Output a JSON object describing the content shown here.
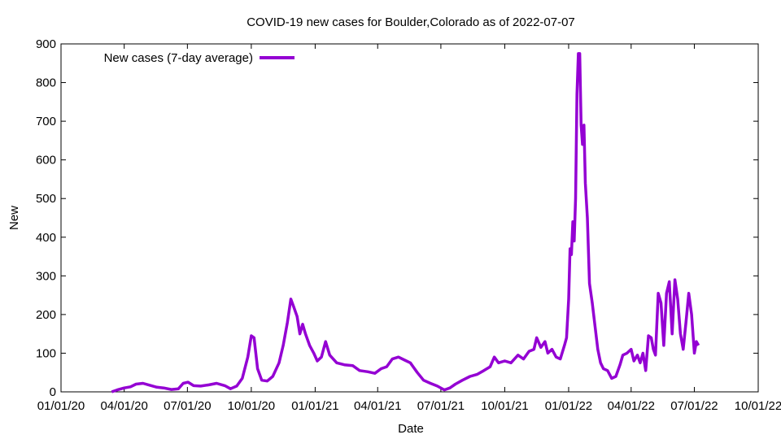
{
  "chart_data": {
    "type": "line",
    "title": "COVID-19 new cases for Boulder,Colorado as of 2022-07-07",
    "xlabel": "Date",
    "ylabel": "New",
    "xlim": [
      "2020-01-01",
      "2022-10-01"
    ],
    "ylim": [
      0,
      900
    ],
    "x_ticks": [
      "01/01/20",
      "04/01/20",
      "07/01/20",
      "10/01/20",
      "01/01/21",
      "04/01/21",
      "07/01/21",
      "10/01/21",
      "01/01/22",
      "04/01/22",
      "07/01/22",
      "10/01/22"
    ],
    "y_ticks": [
      "0",
      "100",
      "200",
      "300",
      "400",
      "500",
      "600",
      "700",
      "800",
      "900"
    ],
    "legend_position": "top-left",
    "grid": false,
    "series": [
      {
        "name": "New cases (7-day average)",
        "color": "#9400D3",
        "points": [
          [
            "2020-03-14",
            0
          ],
          [
            "2020-03-22",
            5
          ],
          [
            "2020-04-01",
            10
          ],
          [
            "2020-04-10",
            13
          ],
          [
            "2020-04-18",
            20
          ],
          [
            "2020-04-28",
            22
          ],
          [
            "2020-05-08",
            17
          ],
          [
            "2020-05-18",
            12
          ],
          [
            "2020-05-28",
            10
          ],
          [
            "2020-06-08",
            6
          ],
          [
            "2020-06-18",
            8
          ],
          [
            "2020-06-25",
            22
          ],
          [
            "2020-07-02",
            25
          ],
          [
            "2020-07-10",
            16
          ],
          [
            "2020-07-20",
            15
          ],
          [
            "2020-08-01",
            18
          ],
          [
            "2020-08-12",
            22
          ],
          [
            "2020-08-24",
            16
          ],
          [
            "2020-09-01",
            8
          ],
          [
            "2020-09-10",
            15
          ],
          [
            "2020-09-18",
            35
          ],
          [
            "2020-09-26",
            90
          ],
          [
            "2020-10-01",
            145
          ],
          [
            "2020-10-05",
            140
          ],
          [
            "2020-10-10",
            60
          ],
          [
            "2020-10-16",
            30
          ],
          [
            "2020-10-24",
            28
          ],
          [
            "2020-11-01",
            40
          ],
          [
            "2020-11-10",
            75
          ],
          [
            "2020-11-16",
            120
          ],
          [
            "2020-11-22",
            180
          ],
          [
            "2020-11-27",
            240
          ],
          [
            "2020-12-01",
            220
          ],
          [
            "2020-12-06",
            195
          ],
          [
            "2020-12-10",
            150
          ],
          [
            "2020-12-14",
            175
          ],
          [
            "2020-12-18",
            150
          ],
          [
            "2020-12-24",
            120
          ],
          [
            "2020-12-30",
            100
          ],
          [
            "2021-01-04",
            80
          ],
          [
            "2021-01-10",
            90
          ],
          [
            "2021-01-16",
            130
          ],
          [
            "2021-01-22",
            95
          ],
          [
            "2021-02-01",
            75
          ],
          [
            "2021-02-12",
            70
          ],
          [
            "2021-02-24",
            68
          ],
          [
            "2021-03-06",
            55
          ],
          [
            "2021-03-18",
            52
          ],
          [
            "2021-03-28",
            48
          ],
          [
            "2021-04-06",
            60
          ],
          [
            "2021-04-14",
            65
          ],
          [
            "2021-04-22",
            85
          ],
          [
            "2021-05-01",
            90
          ],
          [
            "2021-05-10",
            82
          ],
          [
            "2021-05-18",
            75
          ],
          [
            "2021-05-28",
            50
          ],
          [
            "2021-06-06",
            30
          ],
          [
            "2021-06-16",
            22
          ],
          [
            "2021-06-26",
            15
          ],
          [
            "2021-07-06",
            5
          ],
          [
            "2021-07-14",
            10
          ],
          [
            "2021-07-22",
            20
          ],
          [
            "2021-08-01",
            30
          ],
          [
            "2021-08-12",
            40
          ],
          [
            "2021-08-22",
            45
          ],
          [
            "2021-09-01",
            55
          ],
          [
            "2021-09-10",
            65
          ],
          [
            "2021-09-16",
            90
          ],
          [
            "2021-09-22",
            75
          ],
          [
            "2021-10-01",
            80
          ],
          [
            "2021-10-10",
            75
          ],
          [
            "2021-10-20",
            95
          ],
          [
            "2021-10-28",
            85
          ],
          [
            "2021-11-05",
            105
          ],
          [
            "2021-11-12",
            110
          ],
          [
            "2021-11-16",
            140
          ],
          [
            "2021-11-22",
            115
          ],
          [
            "2021-11-28",
            130
          ],
          [
            "2021-12-02",
            100
          ],
          [
            "2021-12-08",
            110
          ],
          [
            "2021-12-14",
            90
          ],
          [
            "2021-12-20",
            85
          ],
          [
            "2021-12-26",
            120
          ],
          [
            "2021-12-29",
            140
          ],
          [
            "2022-01-01",
            240
          ],
          [
            "2022-01-03",
            370
          ],
          [
            "2022-01-05",
            355
          ],
          [
            "2022-01-07",
            440
          ],
          [
            "2022-01-09",
            390
          ],
          [
            "2022-01-11",
            500
          ],
          [
            "2022-01-13",
            770
          ],
          [
            "2022-01-15",
            875
          ],
          [
            "2022-01-17",
            875
          ],
          [
            "2022-01-19",
            690
          ],
          [
            "2022-01-21",
            640
          ],
          [
            "2022-01-23",
            690
          ],
          [
            "2022-01-25",
            540
          ],
          [
            "2022-01-28",
            450
          ],
          [
            "2022-01-31",
            280
          ],
          [
            "2022-02-04",
            230
          ],
          [
            "2022-02-08",
            170
          ],
          [
            "2022-02-12",
            110
          ],
          [
            "2022-02-16",
            75
          ],
          [
            "2022-02-20",
            60
          ],
          [
            "2022-02-26",
            55
          ],
          [
            "2022-03-04",
            35
          ],
          [
            "2022-03-10",
            40
          ],
          [
            "2022-03-16",
            70
          ],
          [
            "2022-03-20",
            95
          ],
          [
            "2022-03-26",
            100
          ],
          [
            "2022-04-01",
            110
          ],
          [
            "2022-04-05",
            80
          ],
          [
            "2022-04-10",
            95
          ],
          [
            "2022-04-14",
            75
          ],
          [
            "2022-04-18",
            100
          ],
          [
            "2022-04-22",
            55
          ],
          [
            "2022-04-26",
            145
          ],
          [
            "2022-04-30",
            140
          ],
          [
            "2022-05-03",
            110
          ],
          [
            "2022-05-06",
            95
          ],
          [
            "2022-05-10",
            255
          ],
          [
            "2022-05-14",
            230
          ],
          [
            "2022-05-18",
            120
          ],
          [
            "2022-05-22",
            255
          ],
          [
            "2022-05-26",
            285
          ],
          [
            "2022-05-30",
            150
          ],
          [
            "2022-06-03",
            290
          ],
          [
            "2022-06-07",
            240
          ],
          [
            "2022-06-11",
            150
          ],
          [
            "2022-06-15",
            110
          ],
          [
            "2022-06-19",
            180
          ],
          [
            "2022-06-23",
            255
          ],
          [
            "2022-06-27",
            200
          ],
          [
            "2022-07-01",
            100
          ],
          [
            "2022-07-04",
            130
          ],
          [
            "2022-07-07",
            120
          ]
        ]
      }
    ]
  }
}
